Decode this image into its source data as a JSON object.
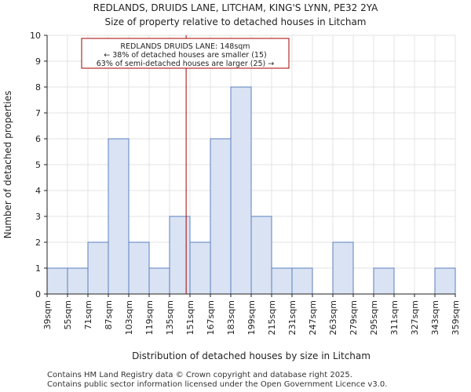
{
  "chart_data": {
    "type": "bar",
    "title_line1": "REDLANDS, DRUIDS LANE, LITCHAM, KING'S LYNN, PE32 2YA",
    "title_line2": "Size of property relative to detached houses in Litcham",
    "xlabel": "Distribution of detached houses by size in Litcham",
    "ylabel": "Number of detached properties",
    "bin_edges": [
      39,
      55,
      71,
      87,
      103,
      119,
      135,
      151,
      167,
      183,
      199,
      215,
      231,
      247,
      263,
      279,
      295,
      311,
      327,
      343,
      359
    ],
    "tick_labels": [
      "39sqm",
      "55sqm",
      "71sqm",
      "87sqm",
      "103sqm",
      "119sqm",
      "135sqm",
      "151sqm",
      "167sqm",
      "183sqm",
      "199sqm",
      "215sqm",
      "231sqm",
      "247sqm",
      "263sqm",
      "279sqm",
      "295sqm",
      "311sqm",
      "327sqm",
      "343sqm",
      "359sqm"
    ],
    "values": [
      1,
      1,
      2,
      6,
      2,
      1,
      3,
      2,
      6,
      8,
      3,
      1,
      1,
      0,
      2,
      0,
      1,
      0,
      0,
      1
    ],
    "ylim": [
      0,
      10
    ],
    "yticks": [
      0,
      1,
      2,
      3,
      4,
      5,
      6,
      7,
      8,
      9,
      10
    ],
    "grid": true,
    "bar_fill": "#dae3f3",
    "bar_edge": "#5b7fbf",
    "marker": {
      "value": 148,
      "color": "#aa0000",
      "annotation_lines": [
        "REDLANDS DRUIDS LANE: 148sqm",
        "← 38% of detached houses are smaller (15)",
        "63% of semi-detached houses are larger (25) →"
      ]
    }
  },
  "footer": {
    "line1": "Contains HM Land Registry data © Crown copyright and database right 2025.",
    "line2": "Contains public sector information licensed under the Open Government Licence v3.0."
  }
}
